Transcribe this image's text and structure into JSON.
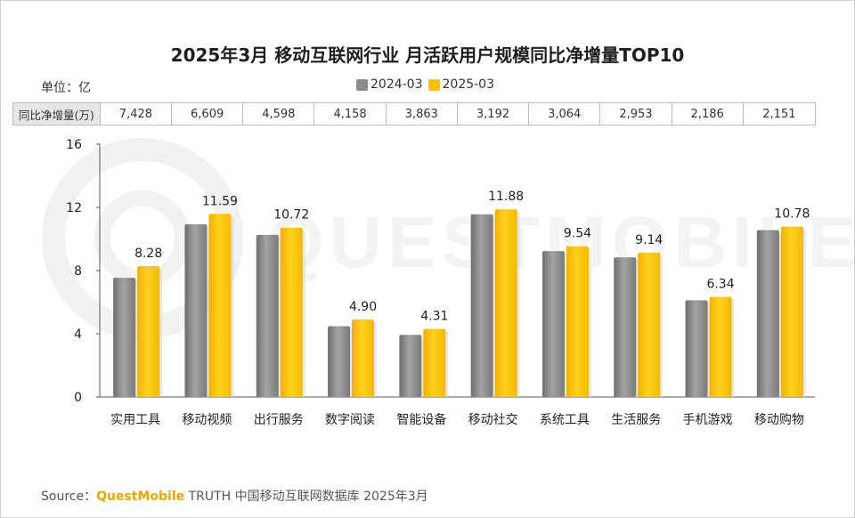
{
  "title": "2025年3月 移动互联网行业 月活跃用户规模同比净增量TOP10",
  "unit_label": "单位：亿",
  "table_header": "同比净增量(万)",
  "net_increase": [
    "7,428",
    "6,609",
    "4,598",
    "4,158",
    "3,863",
    "3,192",
    "3,064",
    "2,953",
    "2,186",
    "2,151"
  ],
  "source": {
    "prefix": "Source：",
    "brand": "QuestMobile",
    "suffix": " TRUTH 中国移动互联网数据库 2025年3月"
  },
  "watermark": "QUESTMOBILE",
  "colors": {
    "series_2024": "#8c8c8c",
    "series_2025": "#ffc000"
  },
  "chart_data": {
    "type": "bar",
    "categories": [
      "实用工具",
      "移动视频",
      "出行服务",
      "数字阅读",
      "智能设备",
      "移动社交",
      "系统工具",
      "生活服务",
      "手机游戏",
      "移动购物"
    ],
    "series": [
      {
        "name": "2024-03",
        "values": [
          7.54,
          10.93,
          10.26,
          4.48,
          3.93,
          11.56,
          9.23,
          8.84,
          6.12,
          10.56
        ]
      },
      {
        "name": "2025-03",
        "values": [
          8.28,
          11.59,
          10.72,
          4.9,
          4.31,
          11.88,
          9.54,
          9.14,
          6.34,
          10.78
        ]
      }
    ],
    "data_labels": [
      "8.28",
      "11.59",
      "10.72",
      "4.90",
      "4.31",
      "11.88",
      "9.54",
      "9.14",
      "6.34",
      "10.78"
    ],
    "yticks": [
      "0",
      "4",
      "8",
      "12",
      "16"
    ],
    "ylim": [
      0,
      16
    ],
    "legend": "top-center",
    "grid": false
  }
}
